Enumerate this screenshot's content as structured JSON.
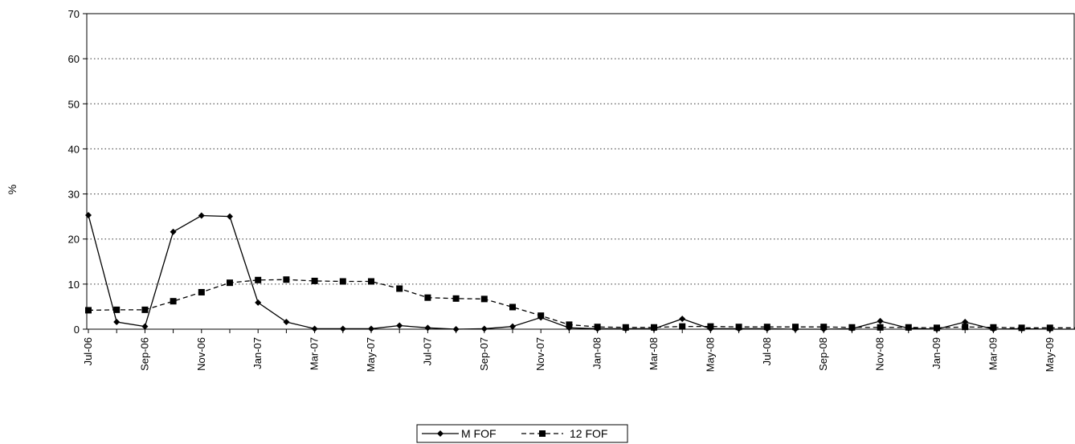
{
  "chart_data": {
    "type": "line",
    "title": "",
    "xlabel": "",
    "ylabel": "%",
    "ylim": [
      0,
      70
    ],
    "yticks": [
      0,
      10,
      20,
      30,
      40,
      50,
      60,
      70
    ],
    "grid": "horizontal dotted",
    "legend_position": "bottom-center",
    "x": [
      "Jul-06",
      "Aug-06",
      "Sep-06",
      "Oct-06",
      "Nov-06",
      "Dec-06",
      "Jan-07",
      "Feb-07",
      "Mar-07",
      "Apr-07",
      "May-07",
      "Jun-07",
      "Jul-07",
      "Aug-07",
      "Sep-07",
      "Oct-07",
      "Nov-07",
      "Dec-07",
      "Jan-08",
      "Feb-08",
      "Mar-08",
      "Apr-08",
      "May-08",
      "Jun-08",
      "Jul-08",
      "Aug-08",
      "Sep-08",
      "Oct-08",
      "Nov-08",
      "Dec-08",
      "Jan-09",
      "Feb-09",
      "Mar-09",
      "Apr-09",
      "May-09",
      "Jun-09"
    ],
    "xtick_labels": [
      "Jul-06",
      "Sep-06",
      "Nov-06",
      "Jan-07",
      "Mar-07",
      "May-07",
      "Jul-07",
      "Sep-07",
      "Nov-07",
      "Jan-08",
      "Mar-08",
      "May-08",
      "Jul-08",
      "Sep-08",
      "Nov-08",
      "Jan-09",
      "Mar-09",
      "May-09"
    ],
    "series": [
      {
        "name": "M FOF",
        "marker": "diamond",
        "line_style": "solid",
        "values": [
          25.3,
          1.6,
          0.6,
          21.6,
          25.2,
          25.0,
          5.9,
          1.6,
          0.1,
          0.1,
          0.1,
          0.8,
          0.3,
          0.0,
          0.1,
          0.6,
          2.6,
          0.3,
          0.1,
          0.1,
          0.1,
          2.3,
          0.1,
          0.1,
          0.1,
          0.0,
          0.0,
          0.1,
          1.8,
          0.2,
          0.0,
          1.6,
          0.0,
          0.1,
          0.0,
          0.0
        ]
      },
      {
        "name": "12 FOF",
        "marker": "square",
        "line_style": "dashed",
        "values": [
          4.2,
          4.3,
          4.3,
          6.2,
          8.2,
          10.3,
          10.9,
          11.0,
          10.7,
          10.6,
          10.6,
          9.0,
          7.0,
          6.8,
          6.7,
          4.9,
          3.0,
          1.0,
          0.5,
          0.4,
          0.4,
          0.6,
          0.6,
          0.5,
          0.5,
          0.5,
          0.5,
          0.4,
          0.4,
          0.4,
          0.3,
          0.5,
          0.4,
          0.3,
          0.3,
          0.3
        ]
      }
    ]
  }
}
